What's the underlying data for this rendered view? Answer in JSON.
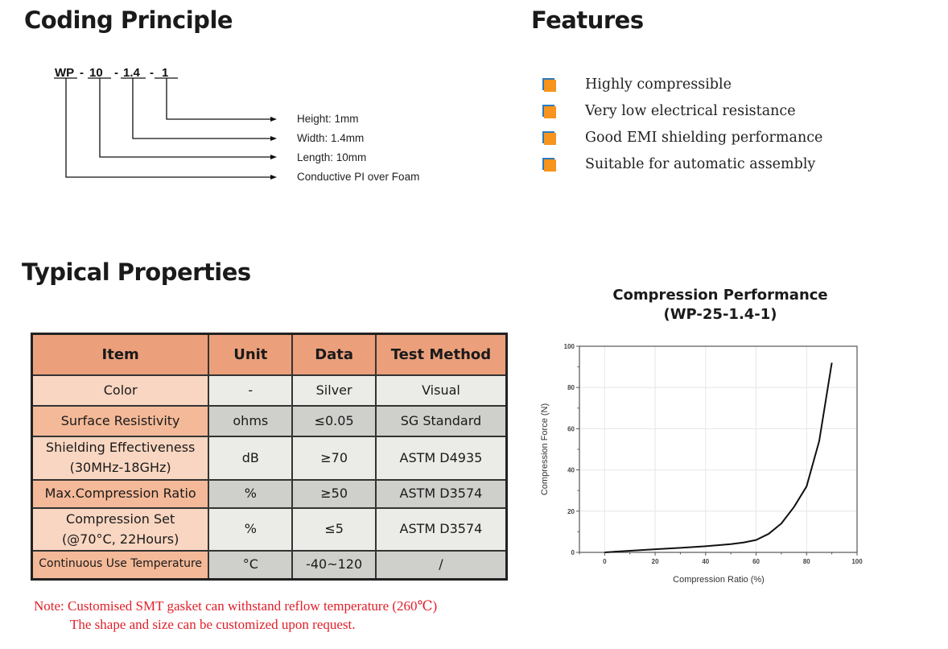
{
  "coding": {
    "title": "Coding Principle",
    "code_parts": [
      "WP",
      "10",
      "1.4",
      "1"
    ],
    "separator": "-",
    "labels": [
      "Height: 1mm",
      "Width: 1.4mm",
      "Length: 10mm",
      "Conductive PI over Foam"
    ]
  },
  "features": {
    "title": "Features",
    "bullet_colors": {
      "fill": "#f7941d",
      "shadow": "#2a7bbf"
    },
    "items": [
      "Highly compressible",
      "Very low electrical resistance",
      "Good EMI shielding performance",
      "Suitable for automatic assembly"
    ]
  },
  "properties": {
    "title": "Typical Properties",
    "headers": [
      "Item",
      "Unit",
      "Data",
      "Test Method"
    ],
    "rows": [
      {
        "item": "Color",
        "unit": "-",
        "data": "Silver",
        "method": "Visual"
      },
      {
        "item": "Surface Resistivity",
        "unit": "ohms",
        "data": "≤0.05",
        "method": "SG Standard"
      },
      {
        "item": "Shielding Effectiveness",
        "item2": "(30MHz-18GHz)",
        "unit": "dB",
        "data": "≥70",
        "method": "ASTM D4935"
      },
      {
        "item": "Max.Compression Ratio",
        "unit": "%",
        "data": "≥50",
        "method": "ASTM D3574"
      },
      {
        "item": "Compression Set",
        "item2": "(@70°C, 22Hours)",
        "unit": "%",
        "data": "≤5",
        "method": "ASTM D3574"
      },
      {
        "item": "Continuous Use Temperature",
        "unit": "°C",
        "data": "-40~120",
        "method": "/"
      }
    ]
  },
  "note": {
    "line1": "Note: Customised SMT gasket can withstand reflow temperature (260℃)",
    "line2": "The shape and size can be customized upon request."
  },
  "chart_data": {
    "type": "line",
    "title": "Compression Performance",
    "subtitle": "(WP-25-1.4-1)",
    "xlabel": "Compression Ratio (%)",
    "ylabel": "Compression Force (N)",
    "xlim": [
      -10,
      100
    ],
    "ylim": [
      0,
      100
    ],
    "xticks": [
      0,
      20,
      40,
      60,
      80,
      100
    ],
    "yticks": [
      0,
      20,
      40,
      60,
      80,
      100
    ],
    "grid": true,
    "x": [
      0,
      10,
      20,
      30,
      40,
      50,
      55,
      60,
      65,
      70,
      75,
      80,
      85,
      90
    ],
    "y": [
      0,
      0.8,
      1.5,
      2.2,
      3,
      4,
      4.8,
      6,
      9,
      14,
      22,
      32,
      54,
      92
    ]
  }
}
